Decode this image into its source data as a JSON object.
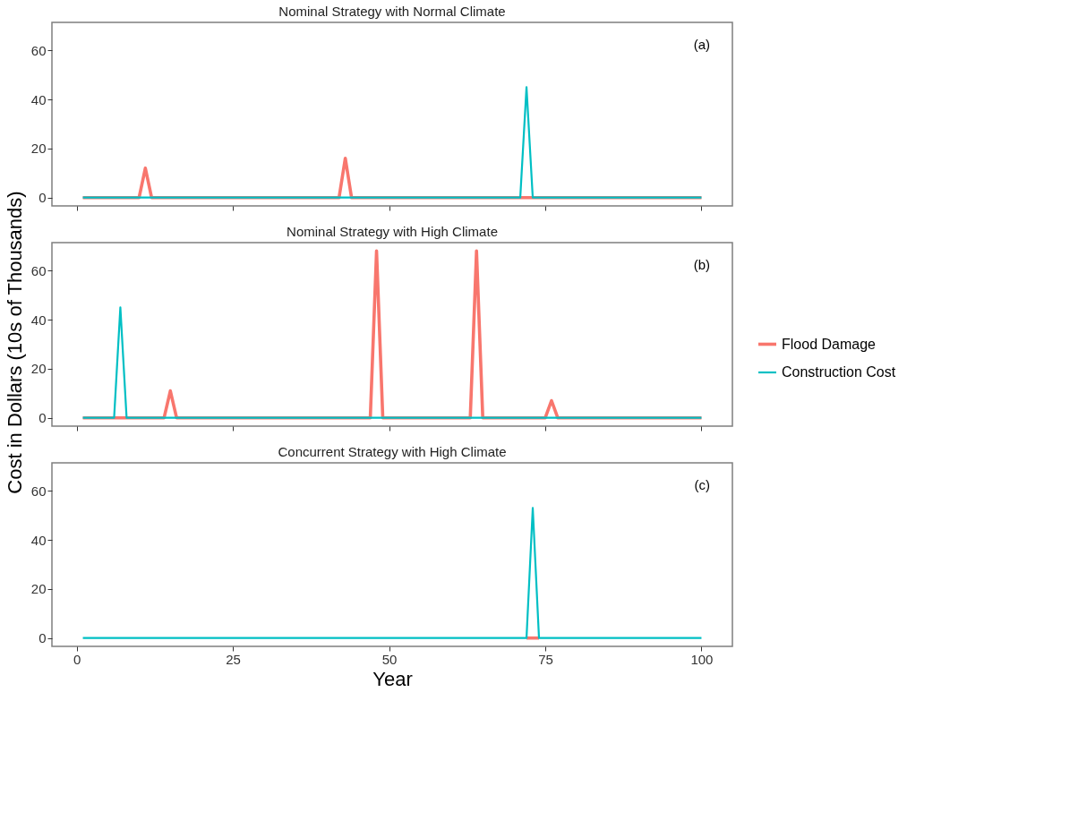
{
  "chart_data": [
    {
      "type": "line",
      "title": "Nominal Strategy with Normal Climate",
      "annotations": [
        "(a)"
      ],
      "xlim": [
        -3.95,
        104.95
      ],
      "xticks": [
        0,
        25,
        50,
        75,
        100
      ],
      "ylim": [
        -3.4,
        71.4
      ],
      "yticks": [
        0,
        20,
        40,
        60
      ],
      "tick_labels": "y",
      "grid": false,
      "legend": "right",
      "series": [
        {
          "name": "Flood Damage",
          "color": "#f8766d",
          "x": [
            1,
            10,
            11,
            12,
            42,
            43,
            44,
            100
          ],
          "values": [
            0,
            0,
            12,
            0,
            0,
            16,
            0,
            0
          ]
        },
        {
          "name": "Construction Cost",
          "color": "#00bfc4",
          "x": [
            1,
            71,
            72,
            73,
            100
          ],
          "values": [
            0,
            0,
            45,
            0,
            0
          ]
        }
      ]
    },
    {
      "type": "line",
      "title": "Nominal Strategy with High Climate",
      "ylabel": "Cost in Dollars (10s of Thousands)",
      "annotations": [
        "(b)"
      ],
      "xlim": [
        -3.95,
        104.95
      ],
      "xticks": [
        0,
        25,
        50,
        75,
        100
      ],
      "ylim": [
        -3.4,
        71.4
      ],
      "yticks": [
        0,
        20,
        40,
        60
      ],
      "tick_labels": "y",
      "grid": false,
      "legend": "right",
      "series": [
        {
          "name": "Flood Damage",
          "color": "#f8766d",
          "x": [
            1,
            14,
            15,
            16,
            47,
            48,
            49,
            63,
            64,
            65,
            75,
            76,
            77,
            100
          ],
          "values": [
            0,
            0,
            11,
            0,
            0,
            68,
            0,
            0,
            68,
            0,
            0,
            7,
            0,
            0
          ]
        },
        {
          "name": "Construction Cost",
          "color": "#00bfc4",
          "x": [
            1,
            6,
            7,
            8,
            100
          ],
          "values": [
            0,
            0,
            45,
            0,
            0
          ]
        }
      ]
    },
    {
      "type": "line",
      "title": "Concurrent Strategy with High Climate",
      "xlabel": "Year",
      "annotations": [
        "(c)"
      ],
      "xlim": [
        -3.95,
        104.95
      ],
      "xticks": [
        0,
        25,
        50,
        75,
        100
      ],
      "ylim": [
        -3.4,
        71.4
      ],
      "yticks": [
        0,
        20,
        40,
        60
      ],
      "grid": false,
      "legend": "right",
      "series": [
        {
          "name": "Flood Damage",
          "color": "#f8766d",
          "x": [
            72,
            74
          ],
          "values": [
            0,
            0
          ]
        },
        {
          "name": "Construction Cost",
          "color": "#00bfc4",
          "x": [
            1,
            72,
            73,
            74,
            100
          ],
          "values": [
            0,
            0,
            53,
            0,
            0
          ]
        }
      ]
    }
  ]
}
